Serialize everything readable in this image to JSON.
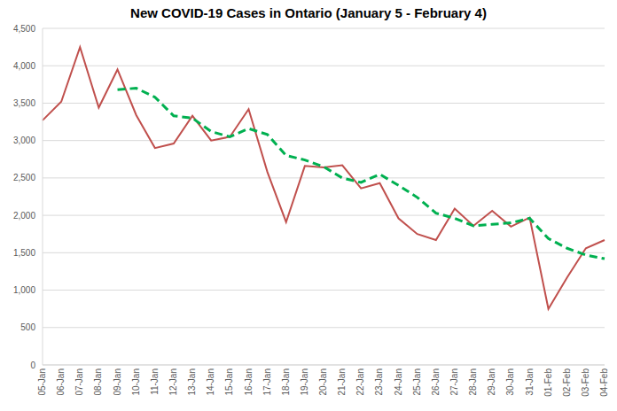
{
  "chart_data": {
    "type": "line",
    "title": "New COVID-19 Cases in Ontario (January 5 - February 4)",
    "categories": [
      "05-Jan",
      "06-Jan",
      "07-Jan",
      "08-Jan",
      "09-Jan",
      "10-Jan",
      "11-Jan",
      "12-Jan",
      "13-Jan",
      "14-Jan",
      "15-Jan",
      "16-Jan",
      "17-Jan",
      "18-Jan",
      "19-Jan",
      "20-Jan",
      "21-Jan",
      "22-Jan",
      "23-Jan",
      "24-Jan",
      "25-Jan",
      "26-Jan",
      "27-Jan",
      "28-Jan",
      "29-Jan",
      "30-Jan",
      "31-Jan",
      "01-Feb",
      "02-Feb",
      "03-Feb",
      "04-Feb"
    ],
    "series": [
      {
        "color": "#c0504d",
        "line_style": "solid",
        "values": [
          3270,
          3520,
          4250,
          3440,
          3950,
          3340,
          2900,
          2960,
          3330,
          3000,
          3050,
          3420,
          2580,
          1910,
          2660,
          2640,
          2670,
          2360,
          2430,
          1960,
          1750,
          1670,
          2090,
          1860,
          2060,
          1850,
          1970,
          750,
          1170,
          1560,
          1670
        ]
      },
      {
        "color": "#00b050",
        "line_style": "dashed",
        "values": [
          null,
          null,
          null,
          null,
          3680,
          3700,
          3580,
          3330,
          3300,
          3120,
          3050,
          3160,
          3080,
          2800,
          2740,
          2650,
          2500,
          2440,
          2550,
          2400,
          2240,
          2030,
          1960,
          1860,
          1880,
          1900,
          1960,
          1690,
          1560,
          1470,
          1420
        ]
      }
    ],
    "ylim": [
      0,
      4500
    ],
    "yticks": [
      0,
      500,
      {
        "value": 1000,
        "label": "1,000"
      },
      {
        "value": 1500,
        "label": "1,500"
      },
      {
        "value": 2000,
        "label": "2,000"
      },
      {
        "value": 2500,
        "label": "2,500"
      },
      {
        "value": 3000,
        "label": "3,000"
      },
      {
        "value": 3500,
        "label": "3,500"
      },
      {
        "value": 4000,
        "label": "4,000"
      },
      {
        "value": 4500,
        "label": "4,500"
      }
    ],
    "grid": true
  }
}
